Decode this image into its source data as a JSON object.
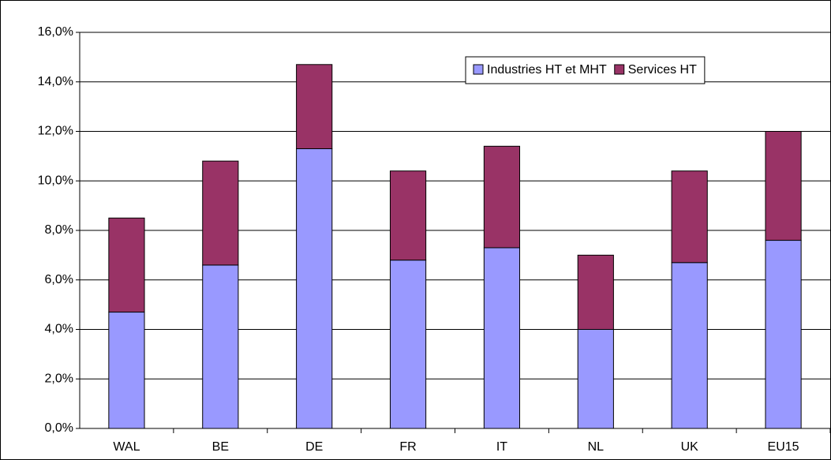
{
  "chart_data": {
    "type": "stacked_bar",
    "categories": [
      "WAL",
      "BE",
      "DE",
      "FR",
      "IT",
      "NL",
      "UK",
      "EU15"
    ],
    "series": [
      {
        "name": "Industries HT et MHT",
        "color": "#9999ff",
        "values": [
          4.7,
          6.6,
          11.3,
          6.8,
          7.3,
          4.0,
          6.7,
          7.6
        ]
      },
      {
        "name": "Services HT",
        "color": "#993366",
        "values": [
          3.8,
          4.2,
          3.4,
          3.6,
          4.1,
          3.0,
          3.7,
          4.4
        ]
      }
    ],
    "ylim": [
      0,
      16
    ],
    "yticks": [
      {
        "value": 0,
        "label": "0,0%"
      },
      {
        "value": 2,
        "label": "2,0%"
      },
      {
        "value": 4,
        "label": "4,0%"
      },
      {
        "value": 6,
        "label": "6,0%"
      },
      {
        "value": 8,
        "label": "8,0%"
      },
      {
        "value": 10,
        "label": "10,0%"
      },
      {
        "value": 12,
        "label": "12,0%"
      },
      {
        "value": 14,
        "label": "14,0%"
      },
      {
        "value": 16,
        "label": "16,0%"
      }
    ],
    "grid": true,
    "legend": "top-right"
  }
}
